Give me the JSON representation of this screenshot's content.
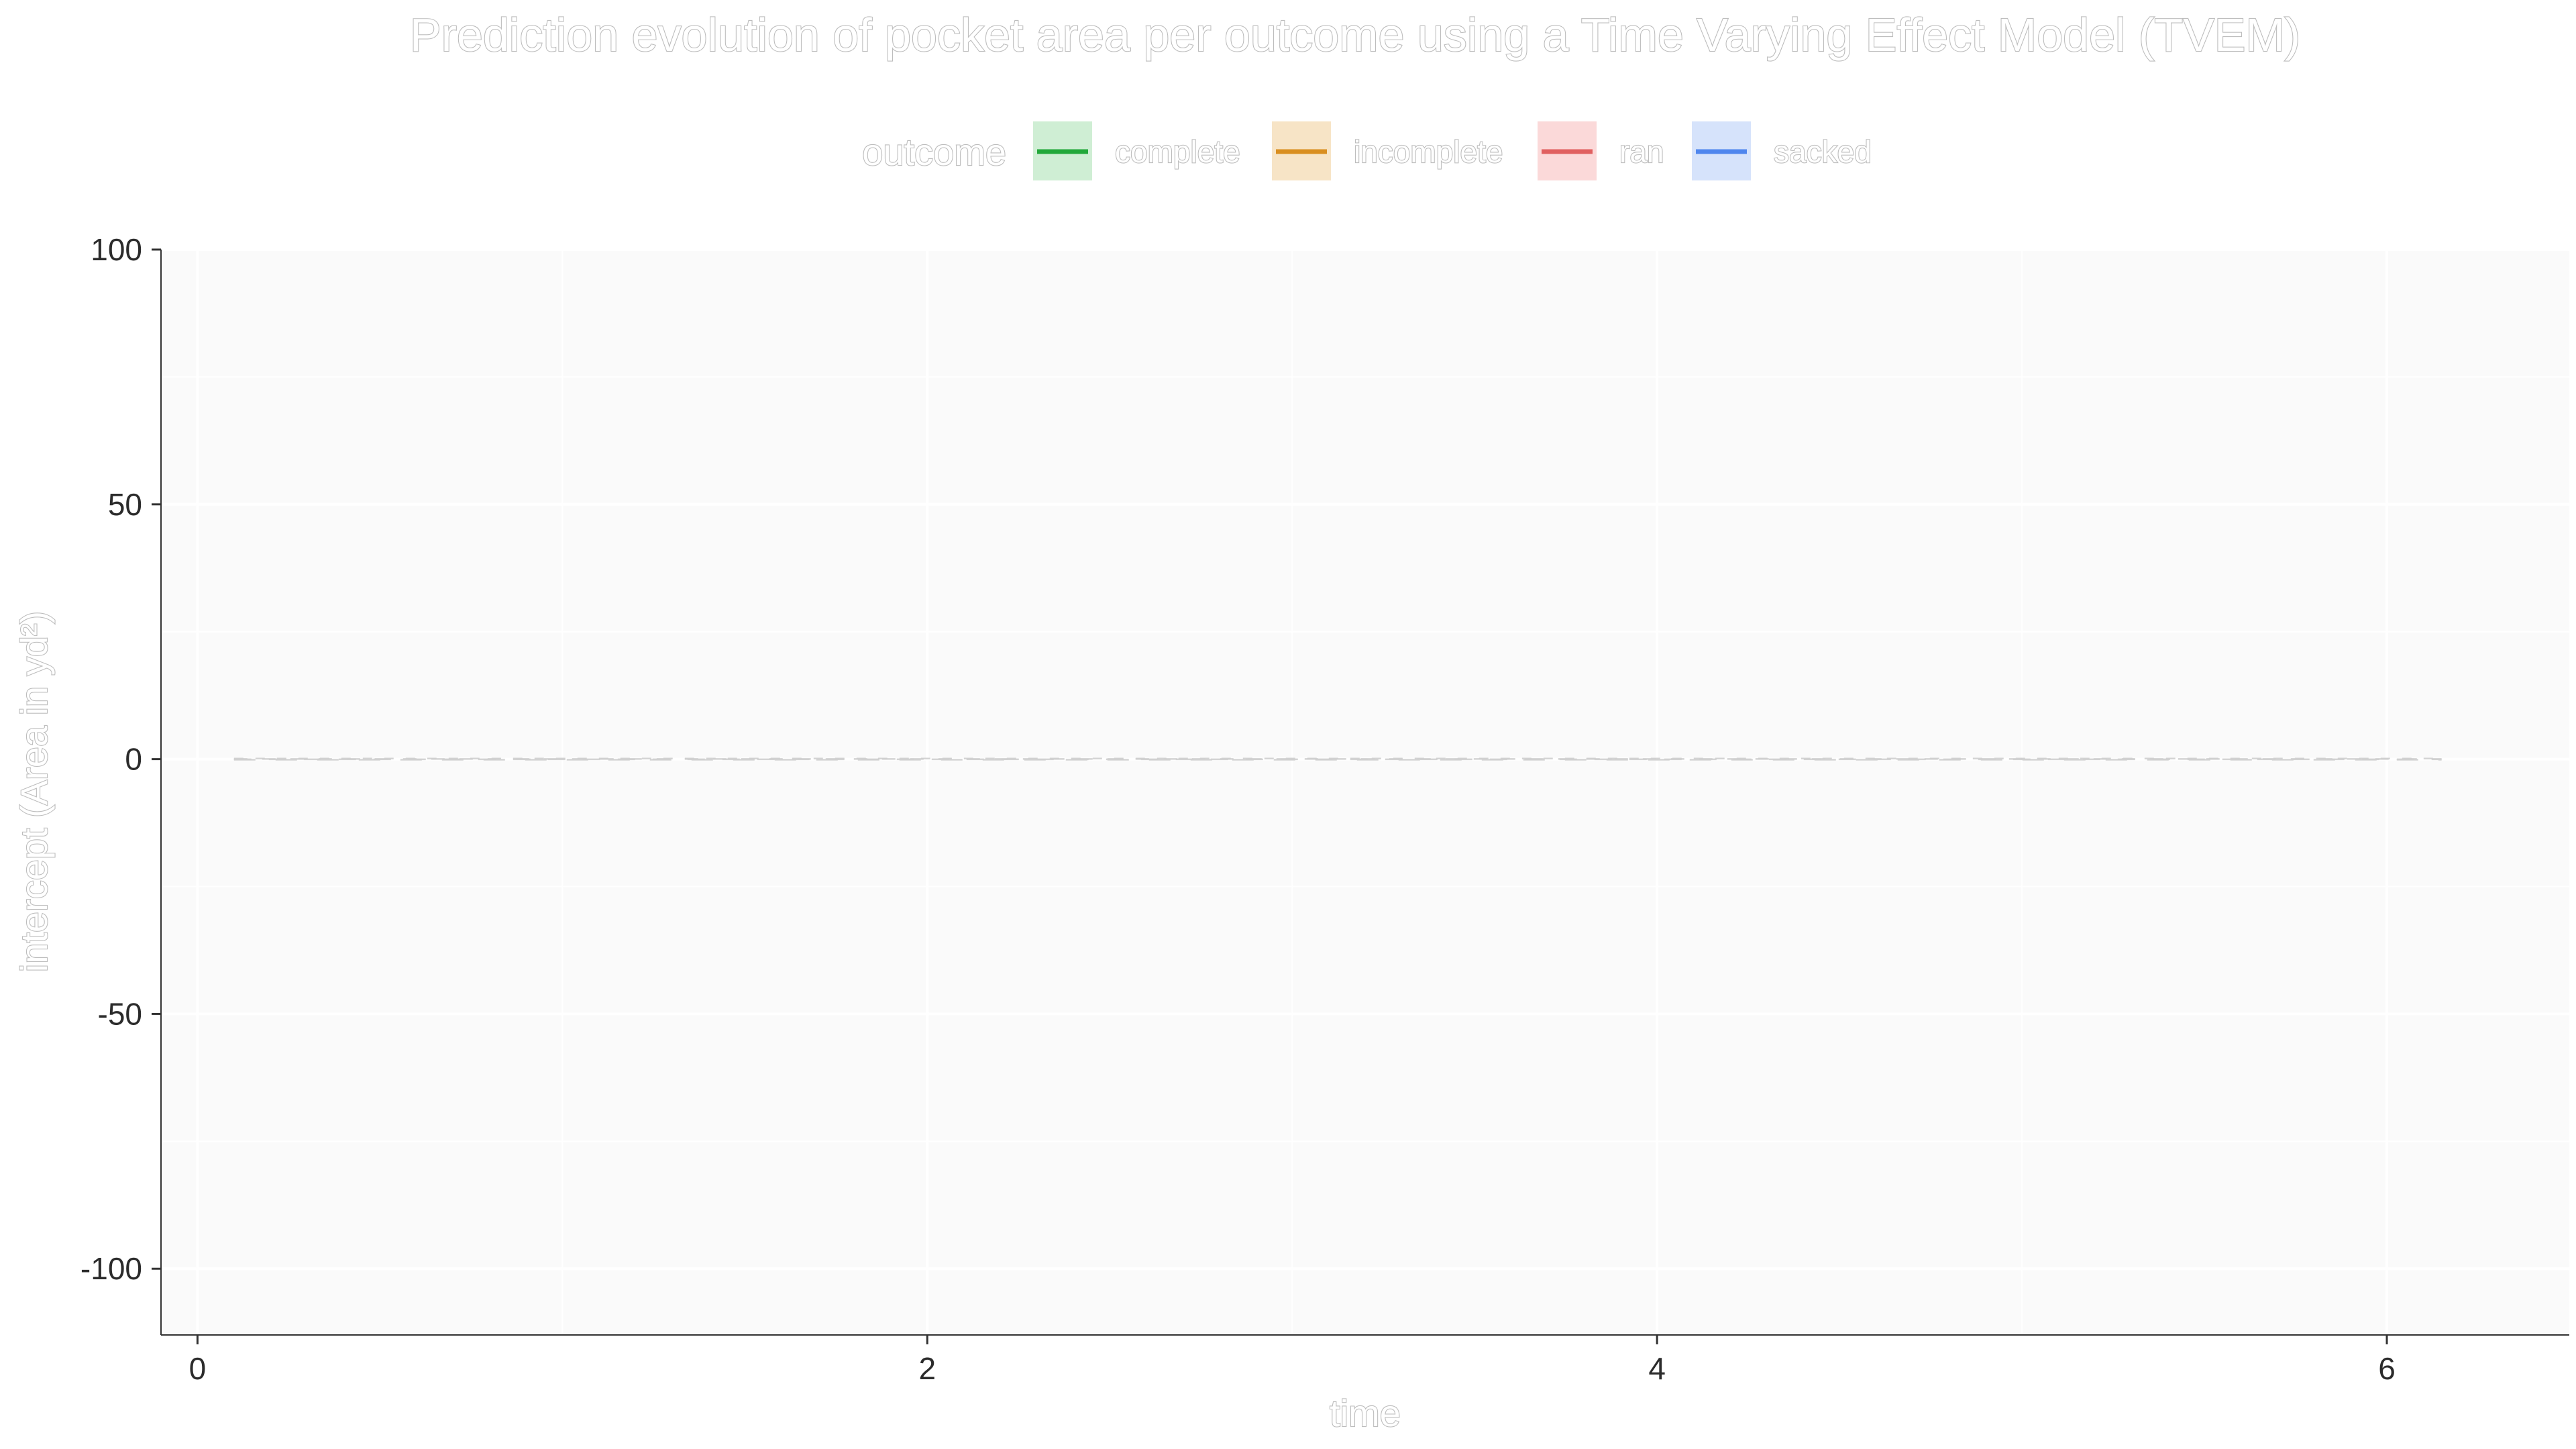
{
  "chart_data": {
    "type": "line",
    "title": "Prediction evolution of pocket area per outcome using a Time Varying Effect Model (TVEM)",
    "xlabel": "time",
    "ylabel": "intercept (Area in yd²)",
    "xlim": [
      -0.1,
      6.5
    ],
    "ylim": [
      -113,
      100
    ],
    "x_ticks": [
      0,
      2,
      4,
      6
    ],
    "y_ticks": [
      -100,
      -50,
      0,
      50,
      100
    ],
    "grid": true,
    "legend": {
      "title": "outcome",
      "position": "top",
      "entries": [
        {
          "name": "complete",
          "color": "#22a83a",
          "fill": "#cfeed4"
        },
        {
          "name": "incomplete",
          "color": "#d98e1f",
          "fill": "#f7e4c6"
        },
        {
          "name": "ran",
          "color": "#e06060",
          "fill": "#fbd9d9"
        },
        {
          "name": "sacked",
          "color": "#4f86ee",
          "fill": "#d6e3fb"
        }
      ]
    },
    "series": [
      {
        "name": "complete",
        "x": [
          0.1,
          1.0,
          2.0,
          3.0,
          4.0,
          5.0,
          6.15
        ],
        "y": [
          0,
          0,
          0,
          0,
          0,
          0,
          0
        ]
      },
      {
        "name": "incomplete",
        "x": [
          0.1,
          1.0,
          2.0,
          3.0,
          4.0,
          5.0,
          6.15
        ],
        "y": [
          0,
          0,
          0,
          0,
          0,
          0,
          0
        ]
      },
      {
        "name": "ran",
        "x": [
          0.1,
          1.0,
          2.0,
          3.0,
          4.0,
          5.0,
          6.15
        ],
        "y": [
          0,
          0,
          0,
          0,
          0,
          0,
          0
        ]
      },
      {
        "name": "sacked",
        "x": [
          0.1,
          1.0,
          2.0,
          3.0,
          4.0,
          5.0,
          6.15
        ],
        "y": [
          0,
          0,
          0,
          0,
          0,
          0,
          0
        ]
      }
    ]
  }
}
